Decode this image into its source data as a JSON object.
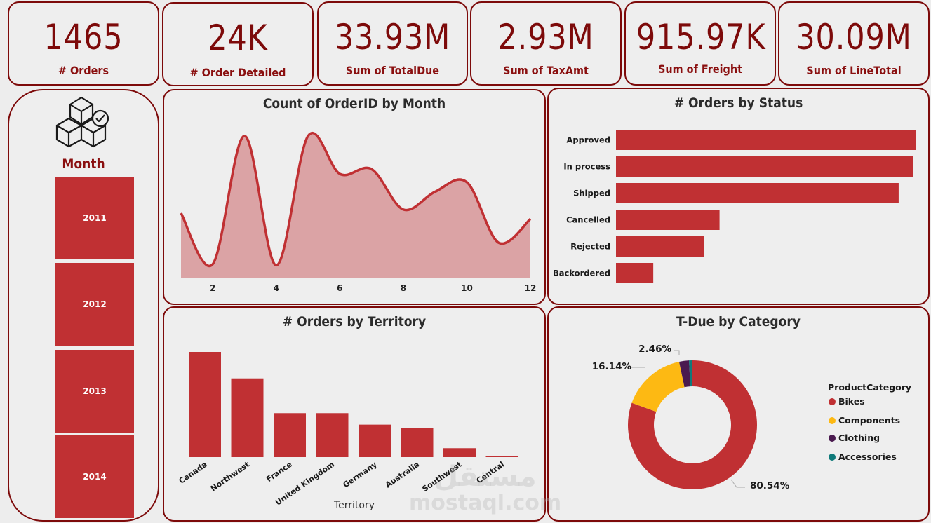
{
  "kpis": [
    {
      "value": "1465",
      "label": "# Orders"
    },
    {
      "value": "24K",
      "label": "# Order Detailed"
    },
    {
      "value": "33.93M",
      "label": "Sum of TotalDue"
    },
    {
      "value": "2.93M",
      "label": "Sum of TaxAmt"
    },
    {
      "value": "915.97K",
      "label": "Sum of Freight"
    },
    {
      "value": "30.09M",
      "label": "Sum of LineTotal"
    }
  ],
  "slicer": {
    "icon": "boxes-check-icon",
    "title": "Month",
    "items": [
      "2011",
      "2012",
      "2013",
      "2014"
    ]
  },
  "colors": {
    "accent": "#c03033",
    "border": "#7d0a0a",
    "area_fill": "#dba3a5",
    "components": "#fdb913",
    "clothing": "#4a1a4f",
    "accessories": "#0f7a7a"
  },
  "watermark": {
    "arabic": "مستقل",
    "latin": "mostaql.com"
  },
  "chart_data": [
    {
      "type": "area",
      "title": "Count of OrderID by Month",
      "x": [
        1,
        2,
        3,
        4,
        5,
        6,
        7,
        8,
        9,
        10,
        11,
        12
      ],
      "values": [
        95,
        52,
        160,
        51,
        160,
        128,
        132,
        98,
        113,
        121,
        70,
        90
      ],
      "xticks": [
        "2",
        "4",
        "6",
        "8",
        "10",
        "12"
      ],
      "ylim": [
        40,
        170
      ],
      "xlabel": "",
      "ylabel": ""
    },
    {
      "type": "bar",
      "orientation": "horizontal",
      "title": "# Orders by Status",
      "categories": [
        "Approved",
        "In process",
        "Shipped",
        "Cancelled",
        "Rejected",
        "Backordered"
      ],
      "values": [
        290,
        287,
        273,
        100,
        85,
        36
      ],
      "xlim": [
        0,
        290
      ]
    },
    {
      "type": "bar",
      "title": "# Orders by Territory",
      "categories": [
        "Canada",
        "Northwest",
        "France",
        "United Kingdom",
        "Germany",
        "Australia",
        "Southwest",
        "Central"
      ],
      "values": [
        330,
        247,
        138,
        138,
        102,
        92,
        28,
        1
      ],
      "xlabel": "Territory",
      "ylabel": "",
      "ylim": [
        0,
        330
      ]
    },
    {
      "type": "pie",
      "donut": true,
      "title": "T-Due by Category",
      "legend_title": "ProductCategory",
      "legend_position": "right",
      "categories": [
        "Bikes",
        "Components",
        "Clothing",
        "Accessories"
      ],
      "values": [
        80.54,
        16.14,
        2.46,
        0.86
      ],
      "labels": [
        "80.54%",
        "16.14%",
        "2.46%",
        ""
      ]
    }
  ]
}
